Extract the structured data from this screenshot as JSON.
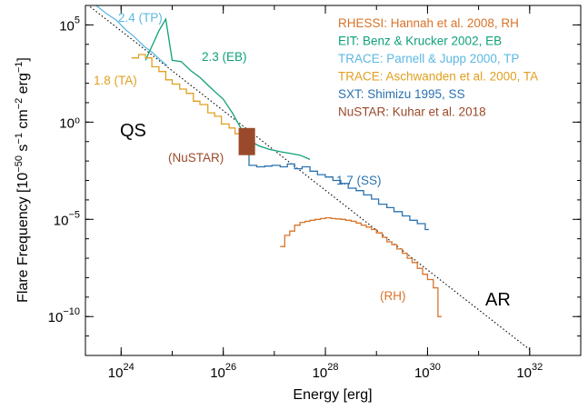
{
  "chart_data": {
    "type": "line",
    "xlabel": "Energy [erg]",
    "ylabel": "Flare Frequency [10^-50 s^-1 cm^-2 erg^-1]",
    "x_scale": "log",
    "y_scale": "log",
    "xlim": [
      2e+23,
      1e+33
    ],
    "ylim": [
      1e-12,
      1000000.0
    ],
    "x_ticks": [
      {
        "value": 1e+24,
        "base": "10",
        "exp": "24"
      },
      {
        "value": 1e+26,
        "base": "10",
        "exp": "26"
      },
      {
        "value": 1e+28,
        "base": "10",
        "exp": "28"
      },
      {
        "value": 1e+30,
        "base": "10",
        "exp": "30"
      },
      {
        "value": 1e+32,
        "base": "10",
        "exp": "32"
      }
    ],
    "y_ticks": [
      {
        "value": 100000.0,
        "base": "10",
        "exp": "5",
        "text": ""
      },
      {
        "value": 1,
        "base": "",
        "exp": "",
        "text": "10⁰"
      },
      {
        "value": 1e-05,
        "base": "10",
        "exp": "−5",
        "text": ""
      },
      {
        "value": 1e-10,
        "base": "10",
        "exp": "−10",
        "text": ""
      }
    ],
    "region_labels": {
      "qs": "QS",
      "ar": "AR"
    },
    "legend": [
      {
        "text": "RHESSI: Hannah et al. 2008, RH",
        "color": "#d8732a"
      },
      {
        "text": "EIT: Benz & Krucker 2002, EB",
        "color": "#10a07a"
      },
      {
        "text": "TRACE: Parnell & Jupp 2000, TP",
        "color": "#5cb8e2"
      },
      {
        "text": "TRACE: Aschwanden et al. 2000, TA",
        "color": "#e0a020"
      },
      {
        "text": "SXT: Shimizu 1995, SS",
        "color": "#2a72b0"
      },
      {
        "text": "NuSTAR: Kuhar et al. 2018",
        "color": "#9a4a2a"
      }
    ],
    "reference_line": {
      "name": "",
      "x": [
        1.3e+23,
        1e+32
      ],
      "y": [
        3200000.0,
        2e-12
      ]
    },
    "series": [
      {
        "key": "TP",
        "label": "2.4 (TP)",
        "color": "#5cb8e2",
        "step": false,
        "x": [
          2e+23,
          3e+23,
          5e+23,
          8e+23,
          1.2e+24,
          1.8e+24,
          2.8e+24,
          4e+24,
          6e+24,
          8e+24
        ],
        "y": [
          2500000.0,
          1200000.0,
          400000.0,
          180000.0,
          60000.0,
          25000.0,
          8000.0,
          4000.0,
          1500.0,
          800
        ]
      },
      {
        "key": "EB",
        "label": "2.3 (EB)",
        "color": "#10a07a",
        "step": false,
        "x": [
          3e+24,
          5.5e+24,
          7.5e+24,
          1e+25,
          1.5e+25,
          2.3e+25,
          3.5e+25,
          5e+25,
          7e+25,
          1e+26,
          1.5e+26,
          2.2e+26,
          3.5e+26,
          5e+26,
          8e+26,
          1.3e+27,
          2e+27,
          3.2e+27,
          5e+27
        ],
        "y": [
          1500.0,
          50000.0,
          200000.0,
          1500.0,
          1300.0,
          450,
          200,
          80,
          35,
          15,
          3,
          0.5,
          0.1,
          0.06,
          0.04,
          0.03,
          0.025,
          0.02,
          0.012
        ]
      },
      {
        "key": "TA",
        "label": "1.8 (TA)",
        "color": "#e0a020",
        "step": true,
        "x": [
          1.6e+24,
          2.2e+24,
          3e+24,
          4e+24,
          5.5e+24,
          7.5e+24,
          1e+25,
          1.4e+25,
          1.9e+25,
          2.6e+25,
          3.5e+25,
          5e+25,
          6.8e+25,
          9.2e+25,
          1.3e+26,
          1.7e+26,
          2.3e+26,
          3.2e+26
        ],
        "y": [
          2000.0,
          3000,
          2000,
          700,
          400,
          150,
          90,
          50,
          30,
          12,
          8,
          3,
          2,
          0.8,
          0.5,
          0.25,
          0.15,
          0.06
        ]
      },
      {
        "key": "SS",
        "label": "1.7 (SS)",
        "color": "#2a72b0",
        "step": true,
        "x": [
          2.2e+26,
          3.2e+26,
          4.5e+26,
          6.5e+26,
          9e+26,
          1.3e+27,
          1.8e+27,
          2.5e+27,
          3.5e+27,
          5e+27,
          7e+27,
          1e+28,
          1.4e+28,
          2e+28,
          2.8e+28,
          4e+28,
          5.6e+28,
          8e+28,
          1.1e+29,
          1.6e+29,
          2.2e+29,
          3.2e+29,
          4.5e+29,
          6.3e+29,
          9e+29
        ],
        "y": [
          0.2,
          0.006,
          0.005,
          0.0055,
          0.006,
          0.005,
          0.007,
          0.004,
          0.005,
          0.003,
          0.002,
          0.0015,
          0.001,
          0.0007,
          0.0004,
          0.0003,
          0.00018,
          0.00011,
          6e-05,
          4e-05,
          2.5e-05,
          1.5e-05,
          9e-06,
          6e-06,
          3e-06
        ]
      },
      {
        "key": "RH",
        "label": "(RH)",
        "color": "#d8732a",
        "step": true,
        "x": [
          1.3e+27,
          1.6e+27,
          2e+27,
          2.5e+27,
          3.2e+27,
          4e+27,
          5e+27,
          6.3e+27,
          8e+27,
          1e+28,
          1.3e+28,
          1.6e+28,
          2e+28,
          2.5e+28,
          3.2e+28,
          4e+28,
          5e+28,
          6.3e+28,
          8e+28,
          1e+29,
          1.3e+29,
          1.6e+29,
          2e+29,
          2.5e+29,
          3.2e+29,
          4e+29,
          5e+29,
          6.3e+29,
          8e+29,
          1e+30,
          1.3e+30,
          1.6e+30
        ],
        "y": [
          4e-07,
          1.5e-06,
          2.5e-06,
          5e-06,
          7e-06,
          8e-06,
          9e-06,
          1e-05,
          1.1e-05,
          1.2e-05,
          1.1e-05,
          1.05e-05,
          1e-05,
          9e-06,
          8e-06,
          6.5e-06,
          5e-06,
          4e-06,
          3e-06,
          2e-06,
          1.2e-06,
          7e-07,
          5e-07,
          3e-07,
          1.8e-07,
          1e-07,
          6e-08,
          3e-08,
          1.5e-08,
          8e-09,
          3e-09,
          1e-10
        ]
      }
    ],
    "nustar_box": {
      "label": "(NuSTAR)",
      "color": "#9a4a2a",
      "x": [
        2e+26,
        4.2e+26
      ],
      "y": [
        0.02,
        0.5
      ]
    }
  }
}
